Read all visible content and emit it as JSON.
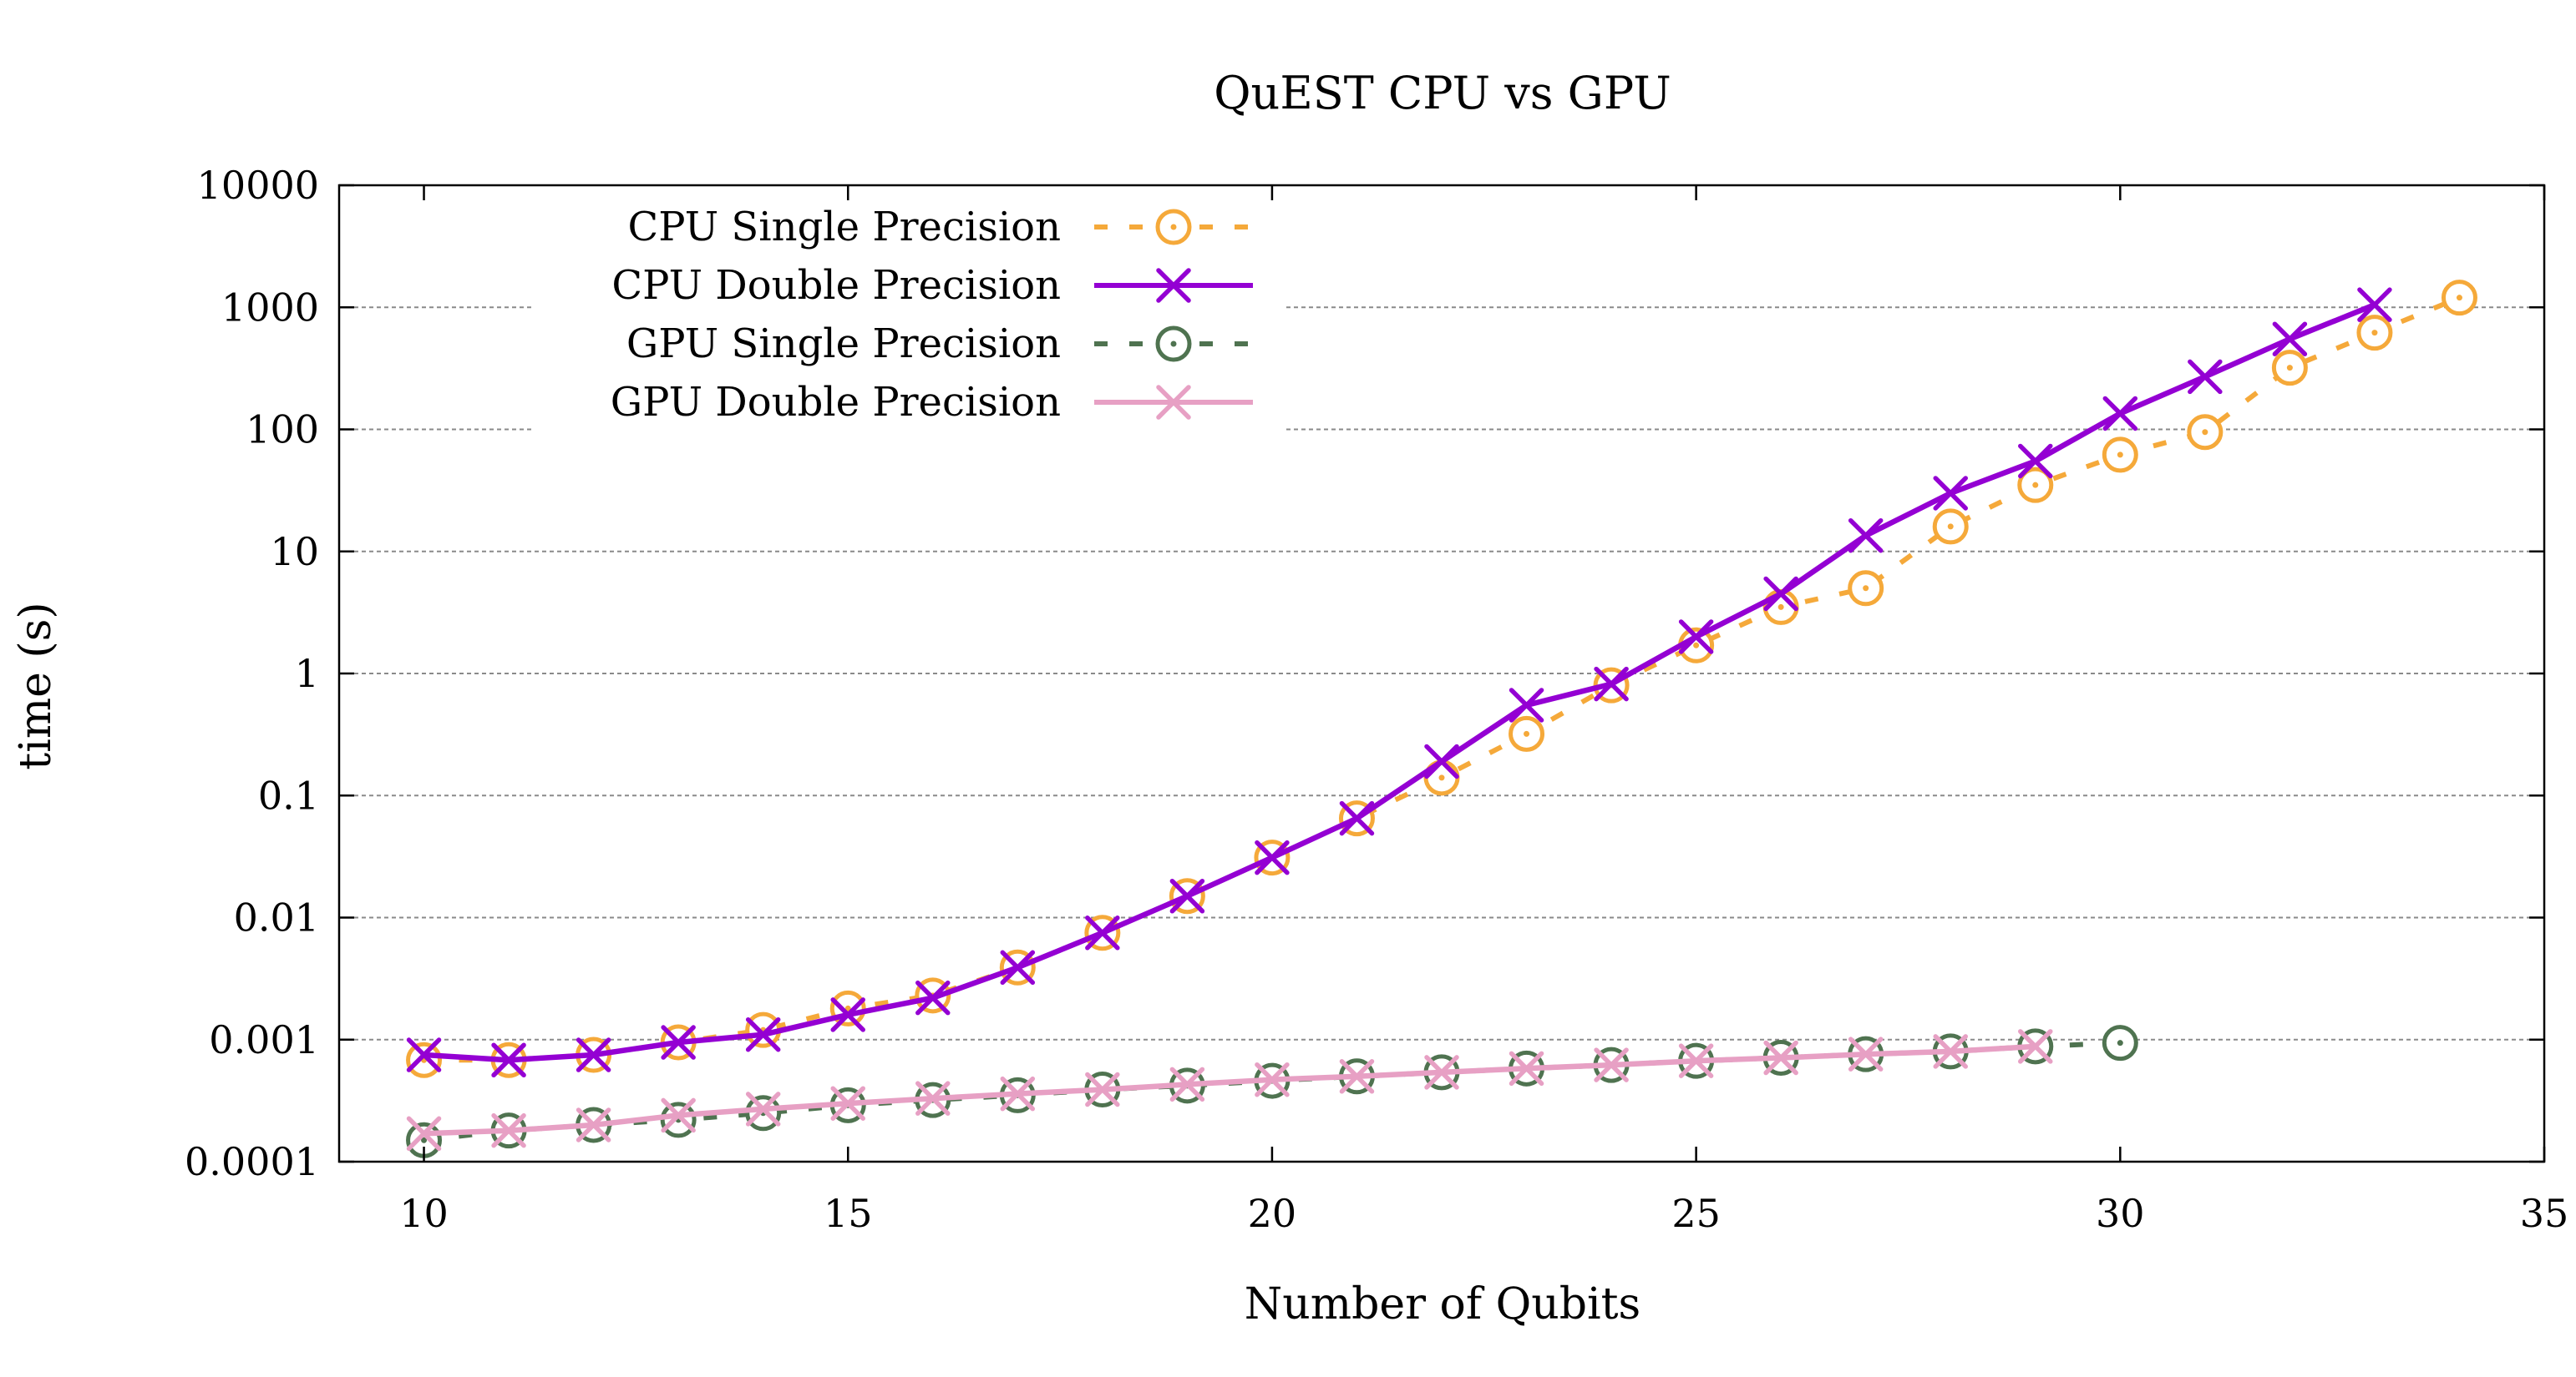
{
  "chart_data": {
    "type": "line",
    "title": "QuEST CPU vs GPU",
    "xlabel": "Number of Qubits",
    "ylabel": "time (s)",
    "xlim": [
      9,
      35
    ],
    "ylim": [
      0.0001,
      10000
    ],
    "yscale": "log",
    "grid": "horizontal dashed",
    "legend_position": "top-left",
    "x_ticks": [
      10,
      15,
      20,
      25,
      30,
      35
    ],
    "x_tick_labels": [
      "10",
      "15",
      "20",
      "25",
      "30",
      "35"
    ],
    "y_ticks": [
      0.0001,
      0.001,
      0.01,
      0.1,
      1,
      10,
      100,
      1000,
      10000
    ],
    "y_tick_labels": [
      "0.0001",
      "0.001",
      "0.01",
      "0.1",
      "1",
      "10",
      "100",
      "1000",
      "10000"
    ],
    "series": [
      {
        "name": "CPU Single Precision",
        "color": "#f5a93a",
        "line_style": "dashed",
        "marker": "circle-dot",
        "x": [
          10,
          11,
          12,
          13,
          14,
          15,
          16,
          17,
          18,
          19,
          20,
          21,
          22,
          23,
          24,
          25,
          26,
          27,
          28,
          29,
          30,
          31,
          32,
          33,
          34
        ],
        "y": [
          0.00068,
          0.00068,
          0.00075,
          0.00095,
          0.0012,
          0.0018,
          0.0023,
          0.0039,
          0.0075,
          0.015,
          0.031,
          0.065,
          0.14,
          0.32,
          0.8,
          1.7,
          3.5,
          5.0,
          16,
          35,
          62,
          95,
          320,
          620,
          1200
        ]
      },
      {
        "name": "CPU Double Precision",
        "color": "#9400d3",
        "line_style": "solid",
        "marker": "x",
        "x": [
          10,
          11,
          12,
          13,
          14,
          15,
          16,
          17,
          18,
          19,
          20,
          21,
          22,
          23,
          24,
          25,
          26,
          27,
          28,
          29,
          30,
          31,
          32,
          33
        ],
        "y": [
          0.00075,
          0.00068,
          0.00075,
          0.00095,
          0.0011,
          0.0016,
          0.0022,
          0.0039,
          0.0075,
          0.015,
          0.031,
          0.065,
          0.19,
          0.55,
          0.82,
          2.0,
          4.5,
          13.5,
          30,
          55,
          135,
          270,
          550,
          1050
        ]
      },
      {
        "name": "GPU Single Precision",
        "color": "#4f7350",
        "line_style": "dashed",
        "marker": "circle-dot",
        "x": [
          10,
          11,
          12,
          13,
          14,
          15,
          16,
          17,
          18,
          19,
          20,
          21,
          22,
          23,
          24,
          25,
          26,
          27,
          28,
          29,
          30
        ],
        "y": [
          0.00015,
          0.00018,
          0.0002,
          0.00022,
          0.00025,
          0.00029,
          0.00032,
          0.00035,
          0.00039,
          0.00042,
          0.00046,
          0.0005,
          0.00054,
          0.00058,
          0.00062,
          0.00067,
          0.00071,
          0.00076,
          0.0008,
          0.00088,
          0.00094
        ]
      },
      {
        "name": "GPU Double Precision",
        "color": "#e7a0c4",
        "line_style": "solid",
        "marker": "x",
        "x": [
          10,
          11,
          12,
          13,
          14,
          15,
          16,
          17,
          18,
          19,
          20,
          21,
          22,
          23,
          24,
          25,
          26,
          27,
          28,
          29
        ],
        "y": [
          0.00017,
          0.00018,
          0.0002,
          0.00024,
          0.00027,
          0.0003,
          0.00033,
          0.00036,
          0.00039,
          0.00043,
          0.00047,
          0.0005,
          0.00054,
          0.00058,
          0.00062,
          0.00067,
          0.00071,
          0.00076,
          0.0008,
          0.00088
        ]
      }
    ]
  }
}
